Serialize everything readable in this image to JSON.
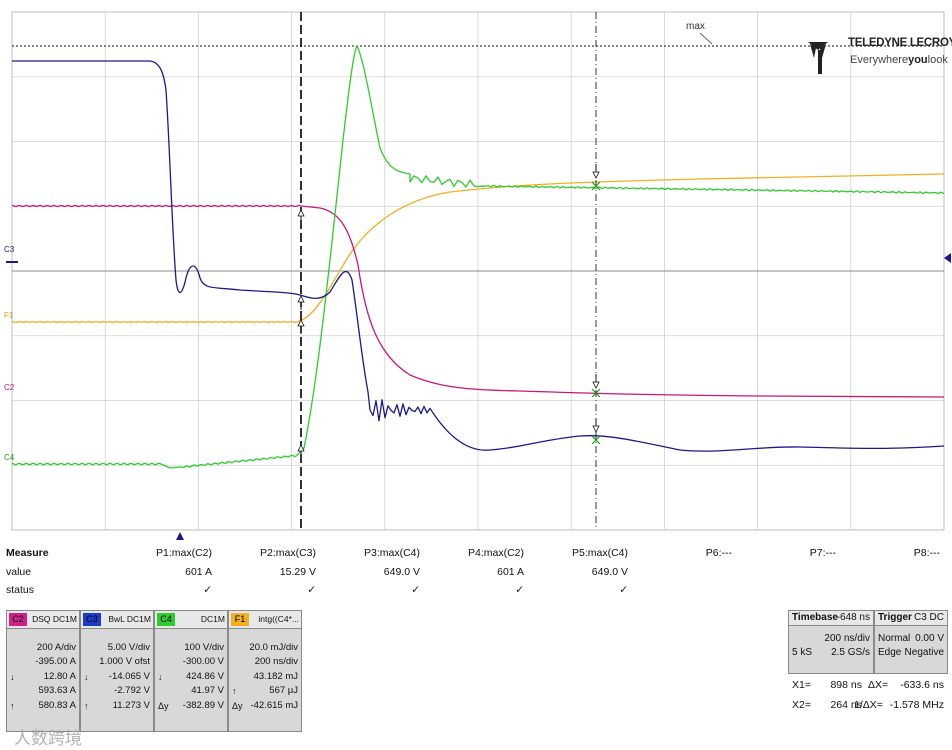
{
  "chart_data": {
    "type": "line",
    "series": [
      {
        "name": "C2",
        "color": "#c8187a"
      },
      {
        "name": "C3",
        "color": "#1a1a8c"
      },
      {
        "name": "C4",
        "color": "#2ecc2e"
      },
      {
        "name": "F1",
        "color": "#f0b020"
      }
    ],
    "xlabel": "",
    "ylabel": "",
    "grid": true,
    "legend": "none"
  },
  "trace_labels": {
    "c3": "C3",
    "f1": "F1",
    "c2": "C2",
    "c4": "C4"
  },
  "max_label": "max",
  "logo": {
    "brand": "TELEDYNE LECROY",
    "tagline_1": "Everywhere",
    "tagline_2": "you",
    "tagline_3": "look"
  },
  "measure": {
    "header": "Measure",
    "row_value": "value",
    "row_status": "status",
    "params": [
      {
        "name": "P1:max(C2)",
        "value": "601 A",
        "status": "✓"
      },
      {
        "name": "P2:max(C3)",
        "value": "15.29 V",
        "status": "✓"
      },
      {
        "name": "P3:max(C4)",
        "value": "649.0 V",
        "status": "✓"
      },
      {
        "name": "P4:max(C2)",
        "value": "601 A",
        "status": "✓"
      },
      {
        "name": "P5:max(C4)",
        "value": "649.0 V",
        "status": "✓"
      },
      {
        "name": "P6:---",
        "value": "",
        "status": ""
      },
      {
        "name": "P7:---",
        "value": "",
        "status": ""
      },
      {
        "name": "P8:---",
        "value": "",
        "status": ""
      }
    ]
  },
  "channels": [
    {
      "tag": "C2",
      "color": "#d0208a",
      "coupling": "DSQ DC1M",
      "rows": [
        {
          "s": "",
          "v": "200 A/div"
        },
        {
          "s": "",
          "v": "-395.00 A"
        },
        {
          "s": "↓",
          "v": "12.80 A"
        },
        {
          "s": "",
          "v": "593.63 A"
        },
        {
          "s": "↑",
          "v": "580.83 A"
        }
      ]
    },
    {
      "tag": "C3",
      "color": "#1a3cc8",
      "coupling": "BwL DC1M",
      "rows": [
        {
          "s": "",
          "v": "5.00 V/div"
        },
        {
          "s": "",
          "v": "1.000 V ofst"
        },
        {
          "s": "↓",
          "v": "-14.065 V"
        },
        {
          "s": "",
          "v": "-2.792 V"
        },
        {
          "s": "↑",
          "v": "11.273 V"
        }
      ]
    },
    {
      "tag": "C4",
      "color": "#2ecc2e",
      "coupling": "DC1M",
      "rows": [
        {
          "s": "",
          "v": "100 V/div"
        },
        {
          "s": "",
          "v": "-300.00 V"
        },
        {
          "s": "↓",
          "v": "424.86 V"
        },
        {
          "s": "",
          "v": "41.97 V"
        },
        {
          "s": "Δy",
          "v": "-382.89 V"
        }
      ]
    },
    {
      "tag": "F1",
      "color": "#f0b020",
      "coupling": "intg((C4*...",
      "rows": [
        {
          "s": "",
          "v": "20.0 mJ/div"
        },
        {
          "s": "",
          "v": "200 ns/div"
        },
        {
          "s": "",
          "v": "43.182 mJ"
        },
        {
          "s": "↑",
          "v": "567 μJ"
        },
        {
          "s": "Δy",
          "v": "-42.615 mJ"
        }
      ]
    }
  ],
  "timebase": {
    "label": "Timebase",
    "delay": "-648 ns",
    "tdiv": "200 ns/div",
    "samples": "5 kS",
    "rate": "2.5 GS/s"
  },
  "trigger": {
    "label": "Trigger",
    "source": "C3 DC",
    "mode": "Normal",
    "level": "0.00 V",
    "type": "Edge",
    "slope": "Negative"
  },
  "cursors": {
    "x1_label": "X1=",
    "x1": "898 ns",
    "dx_label": "ΔX=",
    "dx": "-633.6 ns",
    "x2_label": "X2=",
    "x2": "264 ns",
    "inv_label": "1/ΔX=",
    "inv": "-1.578 MHz"
  },
  "watermark": "人数跨境"
}
